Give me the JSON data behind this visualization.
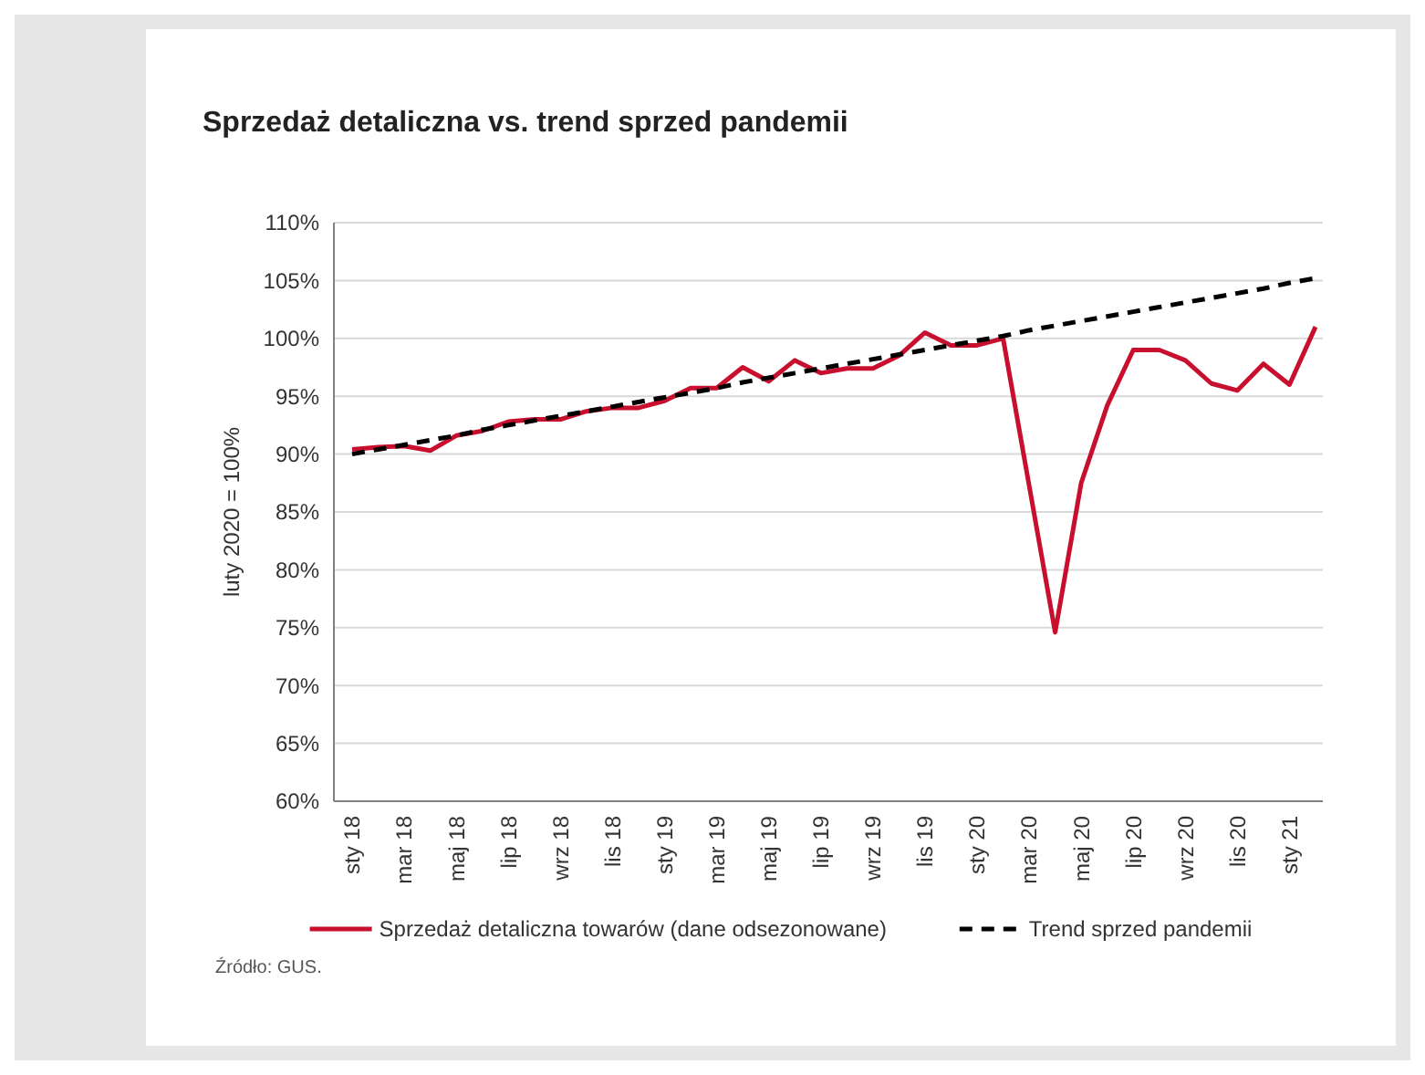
{
  "chart_data": {
    "type": "line",
    "title": "Sprzedaż detaliczna vs. trend sprzed pandemii",
    "ylabel": "luty 2020 = 100%",
    "annotations": [
      "Źródło: GUS."
    ],
    "categories": [
      "sty 18",
      null,
      "mar 18",
      null,
      "maj 18",
      null,
      "lip 18",
      null,
      "wrz 18",
      null,
      "lis 18",
      null,
      "sty 19",
      null,
      "mar 19",
      null,
      "maj 19",
      null,
      "lip 19",
      null,
      "wrz 19",
      null,
      "lis 19",
      null,
      "sty 20",
      null,
      "mar 20",
      null,
      "maj 20",
      null,
      "lip 20",
      null,
      "wrz 20",
      null,
      "lis 20",
      null,
      "sty 21",
      null
    ],
    "series": [
      {
        "name": "Sprzedaż detaliczna towarów (dane odsezonowane)",
        "color": "#c8102e",
        "line_style": "solid",
        "values": [
          90.4,
          90.6,
          90.7,
          90.3,
          91.6,
          92.0,
          92.8,
          93.0,
          93.0,
          93.7,
          94.0,
          94.0,
          94.6,
          95.7,
          95.7,
          97.5,
          96.3,
          98.1,
          97.0,
          97.4,
          97.4,
          98.5,
          100.5,
          99.4,
          99.4,
          100.0,
          87.3,
          74.6,
          87.5,
          94.2,
          99.0,
          99.0,
          98.1,
          96.1,
          95.5,
          97.8,
          96.0,
          101.0
        ]
      },
      {
        "name": "Trend sprzed pandemii",
        "color": "#000000",
        "line_style": "dashed",
        "values": [
          90.0,
          90.4,
          90.8,
          91.2,
          91.6,
          92.1,
          92.5,
          92.9,
          93.3,
          93.7,
          94.1,
          94.5,
          94.9,
          95.3,
          95.7,
          96.2,
          96.6,
          97.0,
          97.4,
          97.8,
          98.2,
          98.6,
          99.0,
          99.4,
          99.8,
          100.2,
          100.7,
          101.1,
          101.5,
          101.9,
          102.3,
          102.7,
          103.1,
          103.5,
          103.9,
          104.3,
          104.8,
          105.2
        ]
      }
    ],
    "ylim": [
      60,
      110
    ],
    "yticks": [
      {
        "value": 60,
        "label": "60%"
      },
      {
        "value": 65,
        "label": "65%"
      },
      {
        "value": 70,
        "label": "70%"
      },
      {
        "value": 75,
        "label": "75%"
      },
      {
        "value": 80,
        "label": "80%"
      },
      {
        "value": 85,
        "label": "85%"
      },
      {
        "value": 90,
        "label": "90%"
      },
      {
        "value": 95,
        "label": "95%"
      },
      {
        "value": 100,
        "label": "100%"
      },
      {
        "value": 105,
        "label": "105%"
      },
      {
        "value": 110,
        "label": "110%"
      }
    ],
    "grid": "y",
    "legend": "bottom",
    "marker": "none"
  }
}
